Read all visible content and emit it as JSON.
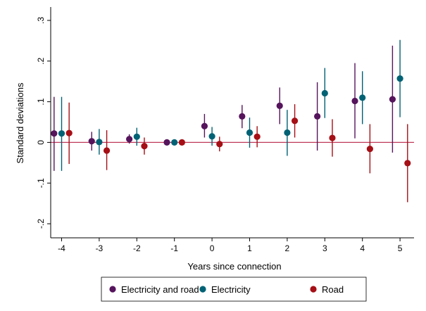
{
  "chart_data": {
    "type": "scatter",
    "subtype": "coefficient-plot-with-confidence-intervals",
    "xlabel": "Years since connection",
    "ylabel": "Standard deviations",
    "x_ticks": [
      "-4",
      "-3",
      "-2",
      "-1",
      "0",
      "1",
      "2",
      "3",
      "4",
      "5"
    ],
    "y_ticks": [
      {
        "value": -0.2,
        "label": "-.2"
      },
      {
        "value": -0.1,
        "label": "-.1"
      },
      {
        "value": 0,
        "label": "0"
      },
      {
        "value": 0.1,
        "label": ".1"
      },
      {
        "value": 0.2,
        "label": ".2"
      },
      {
        "value": 0.3,
        "label": ".3"
      }
    ],
    "xlim": [
      -4.3,
      5.3
    ],
    "ylim": [
      -0.22,
      0.31
    ],
    "grid": false,
    "reference_line": {
      "y": 0,
      "color": "#c0395a"
    },
    "legend_position": "bottom",
    "series": [
      {
        "name": "Electricity and road",
        "color": "#55145c",
        "offset": -0.2,
        "points": [
          {
            "x": -4,
            "y": 0.022,
            "lo": -0.07,
            "hi": 0.112
          },
          {
            "x": -3,
            "y": 0.003,
            "lo": -0.02,
            "hi": 0.026
          },
          {
            "x": -2,
            "y": 0.008,
            "lo": -0.003,
            "hi": 0.02
          },
          {
            "x": -1,
            "y": 0.0,
            "lo": 0.0,
            "hi": 0.0
          },
          {
            "x": 0,
            "y": 0.04,
            "lo": 0.012,
            "hi": 0.07
          },
          {
            "x": 1,
            "y": 0.064,
            "lo": 0.035,
            "hi": 0.092
          },
          {
            "x": 2,
            "y": 0.09,
            "lo": 0.045,
            "hi": 0.135
          },
          {
            "x": 3,
            "y": 0.064,
            "lo": -0.02,
            "hi": 0.148
          },
          {
            "x": 4,
            "y": 0.102,
            "lo": 0.01,
            "hi": 0.195
          },
          {
            "x": 5,
            "y": 0.106,
            "lo": -0.025,
            "hi": 0.238
          }
        ]
      },
      {
        "name": "Electricity",
        "color": "#006275",
        "offset": 0.0,
        "points": [
          {
            "x": -4,
            "y": 0.022,
            "lo": -0.07,
            "hi": 0.112
          },
          {
            "x": -3,
            "y": 0.001,
            "lo": -0.03,
            "hi": 0.033
          },
          {
            "x": -2,
            "y": 0.014,
            "lo": -0.008,
            "hi": 0.036
          },
          {
            "x": -1,
            "y": 0.0,
            "lo": 0.0,
            "hi": 0.0
          },
          {
            "x": 0,
            "y": 0.015,
            "lo": -0.008,
            "hi": 0.038
          },
          {
            "x": 1,
            "y": 0.024,
            "lo": -0.013,
            "hi": 0.061
          },
          {
            "x": 2,
            "y": 0.024,
            "lo": -0.033,
            "hi": 0.08
          },
          {
            "x": 3,
            "y": 0.121,
            "lo": 0.06,
            "hi": 0.183
          },
          {
            "x": 4,
            "y": 0.11,
            "lo": 0.045,
            "hi": 0.175
          },
          {
            "x": 5,
            "y": 0.157,
            "lo": 0.062,
            "hi": 0.252
          }
        ]
      },
      {
        "name": "Road",
        "color": "#a50f15",
        "offset": 0.2,
        "points": [
          {
            "x": -4,
            "y": 0.023,
            "lo": -0.053,
            "hi": 0.098
          },
          {
            "x": -3,
            "y": -0.02,
            "lo": -0.068,
            "hi": 0.03
          },
          {
            "x": -2,
            "y": -0.009,
            "lo": -0.03,
            "hi": 0.012
          },
          {
            "x": -1,
            "y": 0.0,
            "lo": 0.0,
            "hi": 0.0
          },
          {
            "x": 0,
            "y": -0.004,
            "lo": -0.022,
            "hi": 0.014
          },
          {
            "x": 1,
            "y": 0.014,
            "lo": -0.012,
            "hi": 0.04
          },
          {
            "x": 2,
            "y": 0.053,
            "lo": 0.012,
            "hi": 0.094
          },
          {
            "x": 3,
            "y": 0.011,
            "lo": -0.035,
            "hi": 0.057
          },
          {
            "x": 4,
            "y": -0.016,
            "lo": -0.076,
            "hi": 0.045
          },
          {
            "x": 5,
            "y": -0.051,
            "lo": -0.147,
            "hi": 0.045
          }
        ]
      }
    ]
  }
}
